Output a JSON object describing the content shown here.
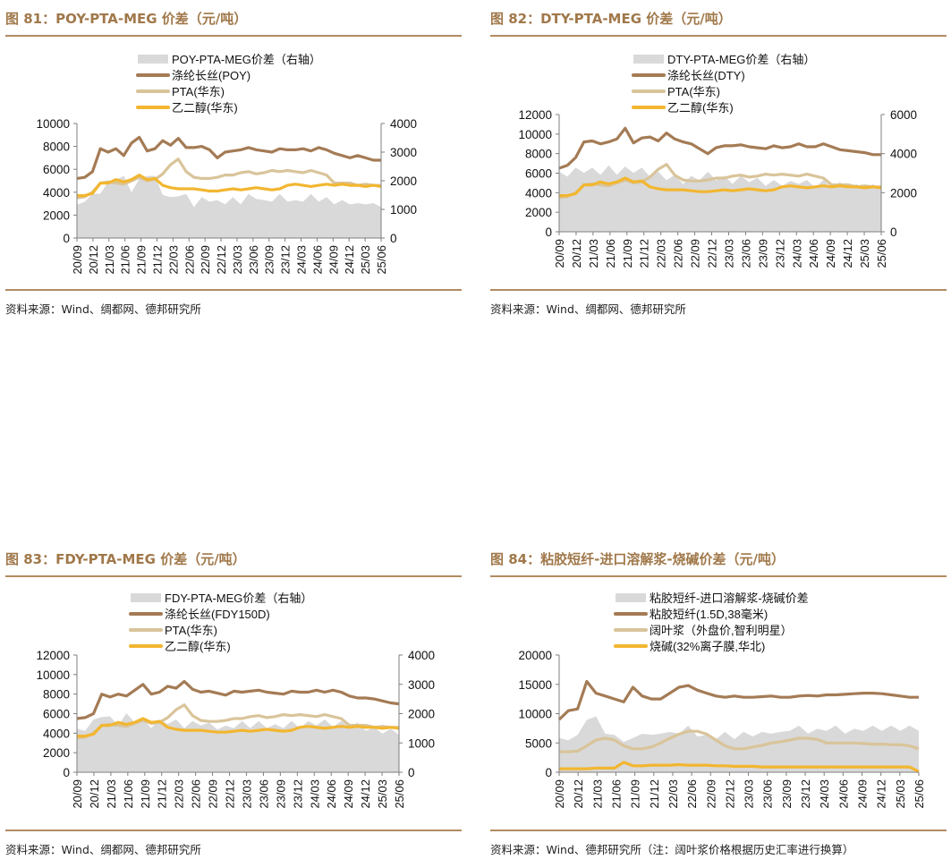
{
  "colors": {
    "area": "#d9d9d9",
    "brown": "#a47b55",
    "tan": "#d9c49a",
    "gold": "#f2b630",
    "title": "#a0784a",
    "rule": "#b28b62"
  },
  "charts": [
    {
      "id": "fig81",
      "title": "图 81：POY-PTA-MEG 价差（元/吨）",
      "source": "资料来源：Wind、绸都网、德邦研究所",
      "chart_data": {
        "type": "line",
        "legend": [
          "POY-PTA-MEG价差（右轴）",
          "涤纶长丝(POY)",
          "PTA(华东)",
          "乙二醇(华东)"
        ],
        "x_ticks": [
          "20/09",
          "20/12",
          "21/03",
          "21/06",
          "21/09",
          "21/12",
          "22/03",
          "22/06",
          "22/09",
          "22/12",
          "23/03",
          "23/06",
          "23/09",
          "23/12",
          "24/03",
          "24/06",
          "24/09",
          "24/12",
          "25/03",
          "25/06"
        ],
        "y_left": {
          "min": 0,
          "max": 10000,
          "ticks": [
            "0",
            "2000",
            "4000",
            "6000",
            "8000",
            "10000"
          ]
        },
        "y_right": {
          "min": 0,
          "max": 4000,
          "ticks": [
            "0",
            "1000",
            "2000",
            "3000",
            "4000"
          ]
        },
        "series": [
          {
            "name": "POY-PTA-MEG价差（右轴）",
            "type": "area",
            "axis": "right",
            "values": [
              1100,
              1350,
              1450,
              1650,
              1850,
              2150,
              2050,
              1700,
              1950,
              2300,
              2050,
              1600,
              1350,
              1550,
              1450,
              1150,
              1350,
              1350,
              1250,
              1250,
              1350,
              1250,
              1450,
              1450,
              1250,
              1350,
              1450,
              1350,
              1250,
              1350,
              1450,
              1350,
              1350,
              1250,
              1250,
              1250,
              1150,
              1250,
              1150,
              1150
            ]
          },
          {
            "name": "涤纶长丝(POY)",
            "type": "line",
            "axis": "left",
            "values": [
              5200,
              5300,
              5800,
              7800,
              7500,
              7800,
              7200,
              8300,
              8800,
              7600,
              7800,
              8500,
              8100,
              8700,
              7900,
              7900,
              8000,
              7700,
              7000,
              7500,
              7600,
              7700,
              7900,
              7700,
              7600,
              7500,
              7800,
              7700,
              7700,
              7800,
              7600,
              7900,
              7700,
              7400,
              7200,
              7000,
              7200,
              7000,
              6800,
              6800
            ]
          },
          {
            "name": "PTA(华东)",
            "type": "line",
            "axis": "left",
            "values": [
              3500,
              3600,
              4000,
              4800,
              4900,
              4800,
              4700,
              5000,
              5300,
              5000,
              5100,
              5600,
              6400,
              6900,
              5800,
              5300,
              5200,
              5200,
              5300,
              5500,
              5500,
              5700,
              5800,
              5600,
              5700,
              5900,
              5800,
              5900,
              5800,
              5700,
              5900,
              5700,
              5500,
              4800,
              4800,
              4800,
              4600,
              4700,
              4600,
              4600
            ]
          },
          {
            "name": "乙二醇(华东)",
            "type": "line",
            "axis": "left",
            "values": [
              3700,
              3700,
              3900,
              4800,
              4800,
              5100,
              4900,
              5100,
              5500,
              5100,
              5200,
              4600,
              4400,
              4300,
              4300,
              4300,
              4200,
              4100,
              4100,
              4200,
              4300,
              4200,
              4300,
              4400,
              4300,
              4200,
              4300,
              4600,
              4700,
              4600,
              4500,
              4600,
              4700,
              4600,
              4700,
              4600,
              4600,
              4500,
              4600,
              4500
            ]
          }
        ]
      }
    },
    {
      "id": "fig82",
      "title": "图 82：DTY-PTA-MEG 价差（元/吨）",
      "source": "资料来源：Wind、绸都网、德邦研究所",
      "chart_data": {
        "type": "line",
        "legend": [
          "DTY-PTA-MEG价差（右轴）",
          "涤纶长丝(DTY)",
          "PTA(华东)",
          "乙二醇(华东)"
        ],
        "x_ticks": [
          "20/09",
          "20/12",
          "21/03",
          "21/06",
          "21/09",
          "21/12",
          "22/03",
          "22/06",
          "22/09",
          "22/12",
          "23/03",
          "23/06",
          "23/09",
          "23/12",
          "24/03",
          "24/06",
          "24/09",
          "24/12",
          "25/03",
          "25/06"
        ],
        "y_left": {
          "min": 0,
          "max": 12000,
          "ticks": [
            "0",
            "2000",
            "4000",
            "6000",
            "8000",
            "10000",
            "12000"
          ]
        },
        "y_right": {
          "min": 0,
          "max": 6000,
          "ticks": [
            "0",
            "2000",
            "4000",
            "6000"
          ]
        },
        "series": [
          {
            "name": "DTY-PTA-MEG价差（右轴）",
            "type": "area",
            "axis": "right",
            "values": [
              2900,
              3000,
              3100,
              3200,
              3100,
              3100,
              3200,
              3100,
              3150,
              3200,
              3100,
              3000,
              2900,
              2800,
              2750,
              2600,
              2700,
              2800,
              2900,
              2800,
              2700,
              2600,
              2700,
              2700,
              2600,
              2500,
              2500,
              2500,
              2450,
              2600,
              2500,
              2400,
              2500,
              2400,
              2400,
              2400,
              2300,
              2300,
              2300,
              2300
            ]
          },
          {
            "name": "涤纶长丝(DTY)",
            "type": "line",
            "axis": "left",
            "values": [
              6500,
              6800,
              7600,
              9200,
              9300,
              9000,
              9200,
              9500,
              10600,
              9100,
              9600,
              9700,
              9300,
              10100,
              9500,
              9200,
              9000,
              8500,
              8000,
              8600,
              8800,
              8800,
              8900,
              8700,
              8600,
              8500,
              8800,
              8600,
              8700,
              9000,
              8700,
              8700,
              9000,
              8700,
              8400,
              8300,
              8200,
              8100,
              7900,
              7900
            ]
          },
          {
            "name": "PTA(华东)",
            "type": "line",
            "axis": "left",
            "values": [
              3500,
              3600,
              4000,
              4800,
              4900,
              4800,
              4700,
              5000,
              5300,
              5000,
              5100,
              5600,
              6400,
              6900,
              5800,
              5300,
              5200,
              5200,
              5300,
              5500,
              5500,
              5700,
              5800,
              5600,
              5700,
              5900,
              5800,
              5900,
              5800,
              5700,
              5900,
              5700,
              5500,
              4800,
              4800,
              4800,
              4600,
              4700,
              4600,
              4600
            ]
          },
          {
            "name": "乙二醇(华东)",
            "type": "line",
            "axis": "left",
            "values": [
              3700,
              3700,
              3900,
              4800,
              4800,
              5100,
              4900,
              5100,
              5500,
              5100,
              5200,
              4600,
              4400,
              4300,
              4300,
              4300,
              4200,
              4100,
              4100,
              4200,
              4300,
              4200,
              4300,
              4400,
              4300,
              4200,
              4300,
              4600,
              4700,
              4600,
              4500,
              4600,
              4700,
              4600,
              4700,
              4600,
              4600,
              4500,
              4600,
              4500
            ]
          }
        ]
      }
    },
    {
      "id": "fig83",
      "title": "图 83：FDY-PTA-MEG 价差（元/吨）",
      "source": "资料来源：Wind、绸都网、德邦研究所",
      "chart_data": {
        "type": "line",
        "legend": [
          "FDY-PTA-MEG价差（右轴）",
          "涤纶长丝(FDY150D)",
          "PTA(华东)",
          "乙二醇(华东)"
        ],
        "x_ticks": [
          "20/09",
          "20/12",
          "21/03",
          "21/06",
          "21/09",
          "21/12",
          "22/03",
          "22/06",
          "22/09",
          "22/12",
          "23/03",
          "23/06",
          "23/09",
          "23/12",
          "24/03",
          "24/06",
          "24/09",
          "24/12",
          "25/03",
          "25/06"
        ],
        "y_left": {
          "min": 0,
          "max": 12000,
          "ticks": [
            "0",
            "2000",
            "4000",
            "6000",
            "8000",
            "10000",
            "12000"
          ]
        },
        "y_right": {
          "min": 0,
          "max": 4000,
          "ticks": [
            "0",
            "1000",
            "2000",
            "3000",
            "4000"
          ]
        },
        "series": [
          {
            "name": "FDY-PTA-MEG价差（右轴）",
            "type": "area",
            "axis": "right",
            "values": [
              1400,
              1500,
              1700,
              2000,
              1800,
              1700,
              1900,
              1800,
              1700,
              1600,
              1700,
              1750,
              1700,
              1600,
              1650,
              1700,
              1600,
              1550,
              1500,
              1600,
              1650,
              1600,
              1650,
              1600,
              1550,
              1600,
              1650,
              1600,
              1650,
              1700,
              1700,
              1650,
              1650,
              1650,
              1600,
              1500,
              1450,
              1400,
              1400,
              1350
            ]
          },
          {
            "name": "涤纶长丝(FDY150D)",
            "type": "line",
            "axis": "left",
            "values": [
              5500,
              5600,
              6000,
              8000,
              7700,
              8000,
              7800,
              8400,
              9000,
              8000,
              8200,
              8800,
              8600,
              9300,
              8500,
              8200,
              8300,
              8100,
              7900,
              8300,
              8200,
              8300,
              8400,
              8200,
              8100,
              8000,
              8300,
              8200,
              8200,
              8400,
              8200,
              8400,
              8200,
              7800,
              7600,
              7600,
              7500,
              7300,
              7100,
              7000
            ]
          },
          {
            "name": "PTA(华东)",
            "type": "line",
            "axis": "left",
            "values": [
              3500,
              3600,
              4000,
              4800,
              4900,
              4800,
              4700,
              5000,
              5300,
              5000,
              5100,
              5600,
              6400,
              6900,
              5800,
              5300,
              5200,
              5200,
              5300,
              5500,
              5500,
              5700,
              5800,
              5600,
              5700,
              5900,
              5800,
              5900,
              5800,
              5700,
              5900,
              5700,
              5500,
              4800,
              4800,
              4800,
              4600,
              4700,
              4600,
              4600
            ]
          },
          {
            "name": "乙二醇(华东)",
            "type": "line",
            "axis": "left",
            "values": [
              3700,
              3700,
              3900,
              4800,
              4800,
              5100,
              4900,
              5100,
              5500,
              5100,
              5200,
              4600,
              4400,
              4300,
              4300,
              4300,
              4200,
              4100,
              4100,
              4200,
              4300,
              4200,
              4300,
              4400,
              4300,
              4200,
              4300,
              4600,
              4700,
              4600,
              4500,
              4600,
              4700,
              4600,
              4700,
              4600,
              4600,
              4500,
              4600,
              4500
            ]
          }
        ]
      }
    },
    {
      "id": "fig84",
      "title": "图 84：粘胶短纤-进口溶解浆-烧碱价差（元/吨）",
      "source": "资料来源：Wind、德邦研究所（注：阔叶浆价格根据历史汇率进行换算）",
      "chart_data": {
        "type": "line",
        "legend": [
          "粘胶短纤-进口溶解浆-烧碱价差",
          "粘胶短纤(1.5D,38毫米)",
          "阔叶浆（外盘价,智利明星）",
          "烧碱(32%离子膜,华北)"
        ],
        "x_ticks": [
          "20/09",
          "20/12",
          "21/03",
          "21/06",
          "21/09",
          "21/12",
          "22/03",
          "22/06",
          "22/09",
          "22/12",
          "23/03",
          "23/06",
          "23/09",
          "23/12",
          "24/03",
          "24/06",
          "24/09",
          "24/12",
          "25/03",
          "25/06"
        ],
        "y_left": {
          "min": 0,
          "max": 20000,
          "ticks": [
            "0",
            "5000",
            "10000",
            "15000",
            "20000"
          ]
        },
        "series": [
          {
            "name": "粘胶短纤-进口溶解浆-烧碱价差",
            "type": "area",
            "axis": "left",
            "values": [
              5500,
              5800,
              6000,
              9500,
              9000,
              7000,
              6000,
              5500,
              5500,
              7000,
              6000,
              7000,
              6500,
              7000,
              7500,
              6500,
              6000,
              6000,
              6500,
              6000,
              6500,
              6500,
              6500,
              7000,
              6500,
              7500,
              7500,
              7000,
              7000,
              7500,
              7500,
              7000,
              7000,
              7500,
              7500,
              7500,
              7500,
              7500,
              7500,
              7500
            ]
          },
          {
            "name": "粘胶短纤(1.5D,38毫米)",
            "type": "line",
            "axis": "left",
            "values": [
              9000,
              10500,
              10800,
              15500,
              13500,
              13000,
              12500,
              12000,
              14500,
              13000,
              12500,
              12500,
              13500,
              14500,
              14800,
              14000,
              13500,
              13000,
              12800,
              13000,
              12800,
              12800,
              12900,
              13000,
              12800,
              12800,
              13000,
              13100,
              13000,
              13200,
              13200,
              13300,
              13400,
              13500,
              13500,
              13400,
              13200,
              13000,
              12800,
              12800
            ]
          },
          {
            "name": "阔叶浆（外盘价,智利明星）",
            "type": "line",
            "axis": "left",
            "values": [
              3500,
              3500,
              3600,
              4500,
              5500,
              5800,
              5500,
              4500,
              4000,
              4000,
              4300,
              5000,
              5800,
              6500,
              7000,
              7000,
              6500,
              5500,
              4500,
              4000,
              4000,
              4300,
              4600,
              5000,
              5200,
              5500,
              5800,
              5800,
              5600,
              5000,
              5000,
              5000,
              5000,
              4900,
              4800,
              4800,
              4700,
              4700,
              4500,
              4000
            ]
          },
          {
            "name": "烧碱(32%离子膜,华北)",
            "type": "line",
            "axis": "left",
            "values": [
              600,
              600,
              600,
              600,
              700,
              700,
              700,
              1700,
              1100,
              1100,
              1200,
              1200,
              1200,
              1300,
              1200,
              1200,
              1200,
              1100,
              1100,
              1000,
              1000,
              1000,
              900,
              900,
              900,
              900,
              900,
              900,
              900,
              900,
              900,
              900,
              900,
              900,
              900,
              900,
              900,
              900,
              900,
              100
            ]
          }
        ]
      }
    }
  ]
}
